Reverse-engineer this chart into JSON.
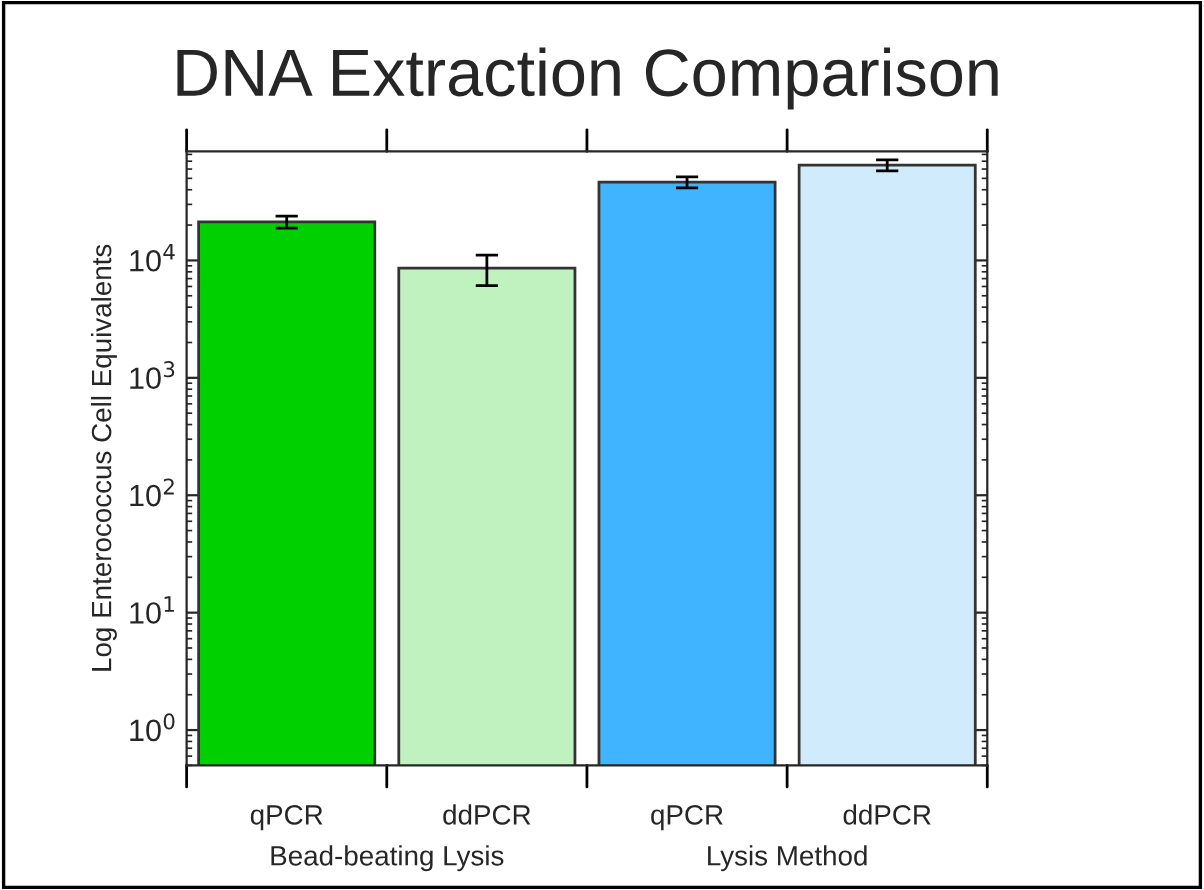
{
  "chart_data": {
    "type": "bar",
    "title": "DNA Extraction Comparison",
    "ylabel": "Log Enterococcus Cell Equivalents",
    "categories": [
      "qPCR",
      "ddPCR",
      "qPCR",
      "ddPCR"
    ],
    "values": [
      21300,
      8600,
      46400,
      64800
    ],
    "errors": [
      2500,
      2500,
      5000,
      7000
    ],
    "colors": [
      "#00d000",
      "#c0f2c0",
      "#40b4ff",
      "#d0ecfc"
    ],
    "annotations": [
      "Bead-beating Lysis",
      "Lysis Method"
    ],
    "log": true,
    "ylim": [
      0.5,
      85000
    ],
    "yticks": [
      {
        "value": 1,
        "label": "10$^{0}$"
      },
      {
        "value": 10,
        "label": "10$^{1}$"
      },
      {
        "value": 100,
        "label": "10$^{2}$"
      },
      {
        "value": 1000,
        "label": "10$^{3}$"
      },
      {
        "value": 10000,
        "label": "10$^{4}$"
      }
    ],
    "grid": false,
    "legend": false
  }
}
